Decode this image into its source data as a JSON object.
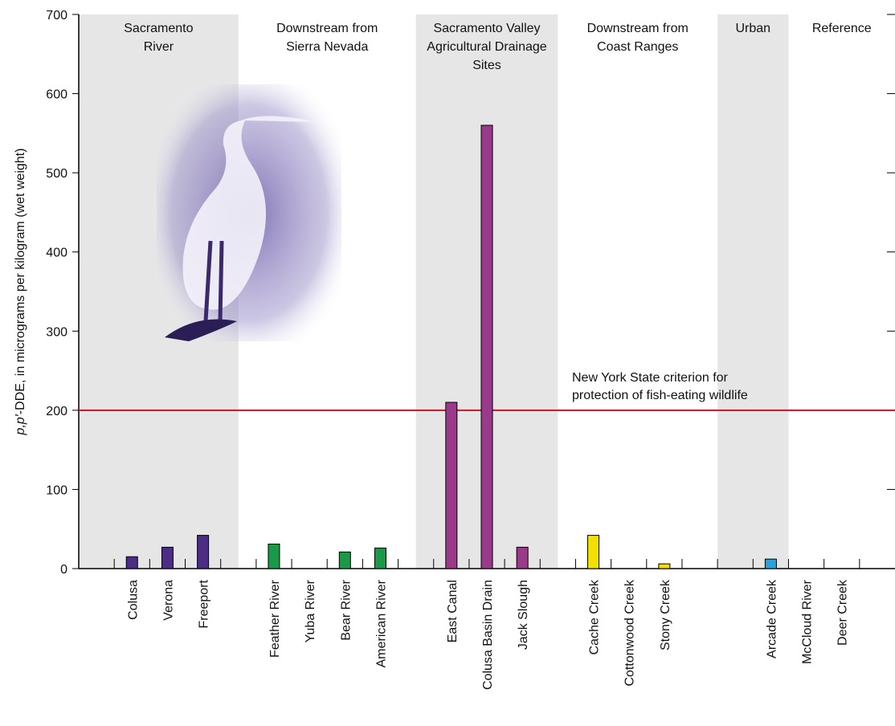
{
  "chart_data": {
    "type": "bar",
    "ylabel_italic": "p,p′",
    "ylabel": "-DDE, in micrograms per kilogram (wet weight)",
    "categories": [
      null,
      "Colusa",
      "Verona",
      "Freeport",
      null,
      "Feather River",
      "Yuba River",
      "Bear River",
      "American River",
      null,
      "East Canal",
      "Colusa Basin Drain",
      "Jack Slough",
      null,
      "Cache Creek",
      "Cottonwood Creek",
      "Stony Creek",
      null,
      null,
      "Arcade Creek",
      "McCloud River",
      "Deer Creek",
      null
    ],
    "values": [
      null,
      15,
      27,
      42,
      null,
      31,
      null,
      21,
      26,
      null,
      210,
      560,
      27,
      null,
      42,
      null,
      6,
      null,
      null,
      12,
      null,
      null,
      null
    ],
    "groups": [
      {
        "lines": [
          "Sacramento",
          "River"
        ],
        "first": 1,
        "last": 3,
        "shaded": true,
        "color": "#4b2d84"
      },
      {
        "lines": [
          "Downstream from",
          "Sierra Nevada"
        ],
        "first": 5,
        "last": 8,
        "shaded": false,
        "color": "#1a9a48"
      },
      {
        "lines": [
          "Sacramento Valley",
          "Agricultural Drainage",
          "Sites"
        ],
        "first": 10,
        "last": 12,
        "shaded": true,
        "color": "#9b3a8a"
      },
      {
        "lines": [
          "Downstream from",
          "Coast Ranges"
        ],
        "first": 14,
        "last": 16,
        "shaded": false,
        "color": "#f2e000"
      },
      {
        "lines": [
          "Urban"
        ],
        "first": 19,
        "last": 19,
        "shaded": true,
        "color": "#2aa0dc"
      },
      {
        "lines": [
          "Reference"
        ],
        "first": 20,
        "last": 21,
        "shaded": false,
        "color": "#888888"
      }
    ],
    "reference_line": {
      "value": 200,
      "lines": [
        "New York State criterion for",
        "protection of fish-eating wildlife"
      ],
      "color": "#d0102a"
    },
    "ylim": [
      0,
      700
    ],
    "yticks": [
      0,
      100,
      200,
      300,
      400,
      500,
      600,
      700
    ]
  }
}
